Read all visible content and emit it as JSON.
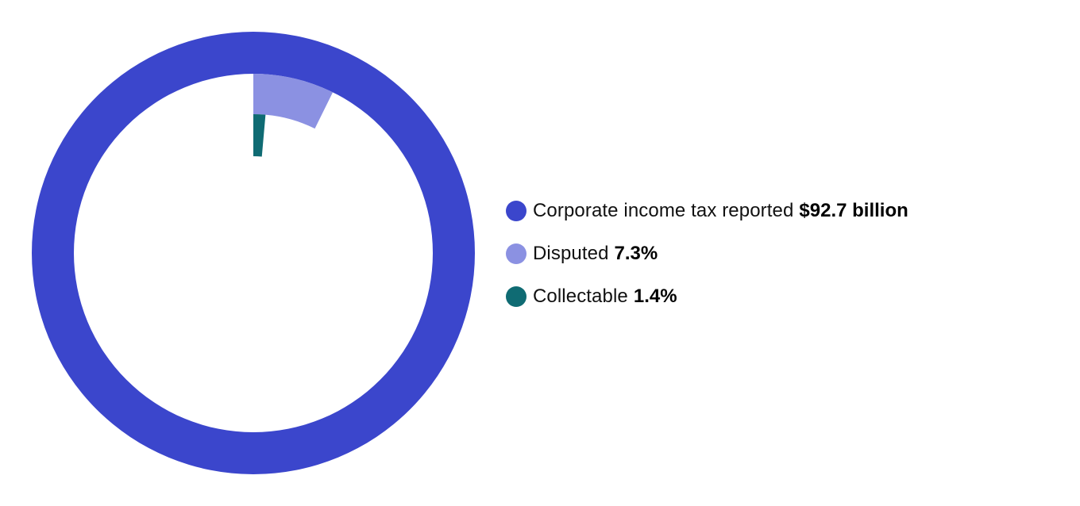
{
  "chart_data": {
    "type": "pie",
    "title": "",
    "series": [
      {
        "name": "Corporate income tax reported",
        "value_text": "$92.7 billion",
        "value": 92.7,
        "unit": "billion",
        "color": "#3b46cc"
      },
      {
        "name": "Disputed",
        "value_text": "7.3%",
        "value": 7.3,
        "unit": "%",
        "color": "#8b91e2"
      },
      {
        "name": "Collectable",
        "value_text": "1.4%",
        "value": 1.4,
        "unit": "%",
        "color": "#0f6b73"
      }
    ],
    "legend_position": "right"
  }
}
